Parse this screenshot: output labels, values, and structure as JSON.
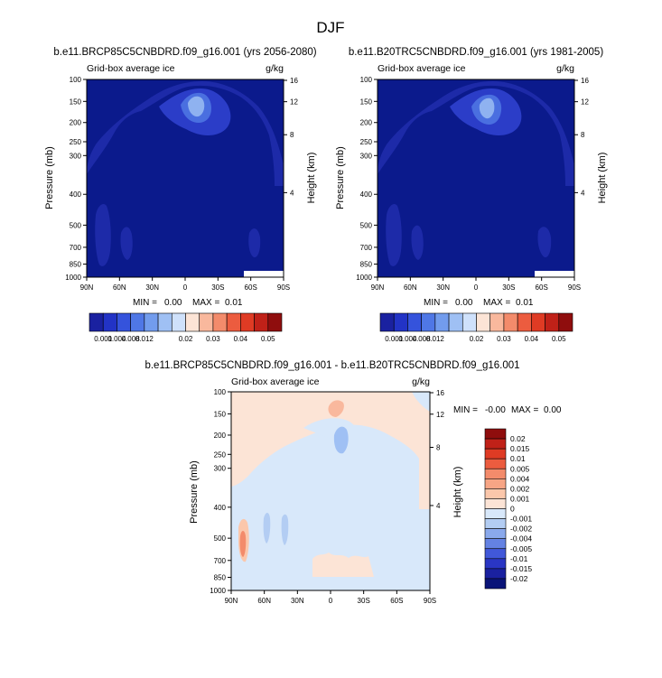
{
  "page": {
    "title": "DJF"
  },
  "shared": {
    "field_label": "Grid-box average ice",
    "units": "g/kg",
    "left_axis_label": "Pressure (mb)",
    "right_axis_label": "Height (km)",
    "pressure_ticks": [
      "100",
      "150",
      "200",
      "250",
      "300",
      "400",
      "500",
      "700",
      "850",
      "1000"
    ],
    "height_ticks": [
      "16",
      "12",
      "8",
      "4"
    ],
    "lat_ticks": [
      "90N",
      "60N",
      "30N",
      "0",
      "30S",
      "60S",
      "90S"
    ]
  },
  "panels": [
    {
      "title": "b.e11.BRCP85C5CNBDRD.f09_g16.001 (yrs 2056-2080)",
      "stats": {
        "min_label": "MIN =",
        "min": "0.00",
        "max_label": "MAX =",
        "max": "0.01"
      }
    },
    {
      "title": "b.e11.B20TRC5CNBDRD.f09_g16.001 (yrs 1981-2005)",
      "stats": {
        "min_label": "MIN =",
        "min": "0.00",
        "max_label": "MAX =",
        "max": "0.01"
      }
    },
    {
      "title": "b.e11.BRCP85C5CNBDRD.f09_g16.001 - b.e11.B20TRC5CNBDRD.f09_g16.001",
      "stats": {
        "min_label": "MIN =",
        "min": "-0.00",
        "max_label": "MAX =",
        "max": "0.00"
      }
    }
  ],
  "colorbar_top": {
    "labels": [
      "0.001",
      "0.004",
      "0.008",
      "0.012",
      "0.02",
      "0.03",
      "0.04",
      "0.05"
    ],
    "colors": [
      "#1a21a0",
      "#2233c6",
      "#3553dc",
      "#4f77e6",
      "#729ced",
      "#9fc0f4",
      "#cfe1fb",
      "#fce4d6",
      "#f9b89d",
      "#f38b6b",
      "#ec5c3f",
      "#df3b24",
      "#c02118",
      "#8f0d0d"
    ]
  },
  "colorbar_diff": {
    "labels": [
      "0.02",
      "0.015",
      "0.01",
      "0.005",
      "0.004",
      "0.002",
      "0.001",
      "0",
      "-0.001",
      "-0.002",
      "-0.004",
      "-0.005",
      "-0.01",
      "-0.015",
      "-0.02"
    ],
    "colors": [
      "#8f0d0d",
      "#c02118",
      "#df3b24",
      "#ec5c3f",
      "#f38b6b",
      "#f7a585",
      "#fbc7ab",
      "#fce4d6",
      "#d8e8fa",
      "#b3cdf3",
      "#8aa9ec",
      "#6482e3",
      "#4158d9",
      "#2a36c4",
      "#1a21a0",
      "#0a1478"
    ]
  },
  "chart_data": [
    {
      "type": "heatmap",
      "title": "b.e11.BRCP85C5CNBDRD.f09_g16.001 (yrs 2056-2080)",
      "variable": "Grid-box average ice",
      "units": "g/kg",
      "x": [
        "90N",
        "60N",
        "30N",
        "0",
        "30S",
        "60S",
        "90S"
      ],
      "ylabel": "Pressure (mb)",
      "y2label": "Height (km)",
      "ylim": [
        1000,
        100
      ],
      "min": 0.0,
      "max": 0.01
    },
    {
      "type": "heatmap",
      "title": "b.e11.B20TRC5CNBDRD.f09_g16.001 (yrs 1981-2005)",
      "variable": "Grid-box average ice",
      "units": "g/kg",
      "x": [
        "90N",
        "60N",
        "30N",
        "0",
        "30S",
        "60S",
        "90S"
      ],
      "ylabel": "Pressure (mb)",
      "y2label": "Height (km)",
      "ylim": [
        1000,
        100
      ],
      "min": 0.0,
      "max": 0.01
    },
    {
      "type": "heatmap",
      "title": "b.e11.BRCP85C5CNBDRD.f09_g16.001 - b.e11.B20TRC5CNBDRD.f09_g16.001",
      "variable": "Grid-box average ice",
      "units": "g/kg",
      "x": [
        "90N",
        "60N",
        "30N",
        "0",
        "30S",
        "60S",
        "90S"
      ],
      "ylabel": "Pressure (mb)",
      "y2label": "Height (km)",
      "ylim": [
        1000,
        100
      ],
      "min": -0.0,
      "max": 0.0
    }
  ]
}
